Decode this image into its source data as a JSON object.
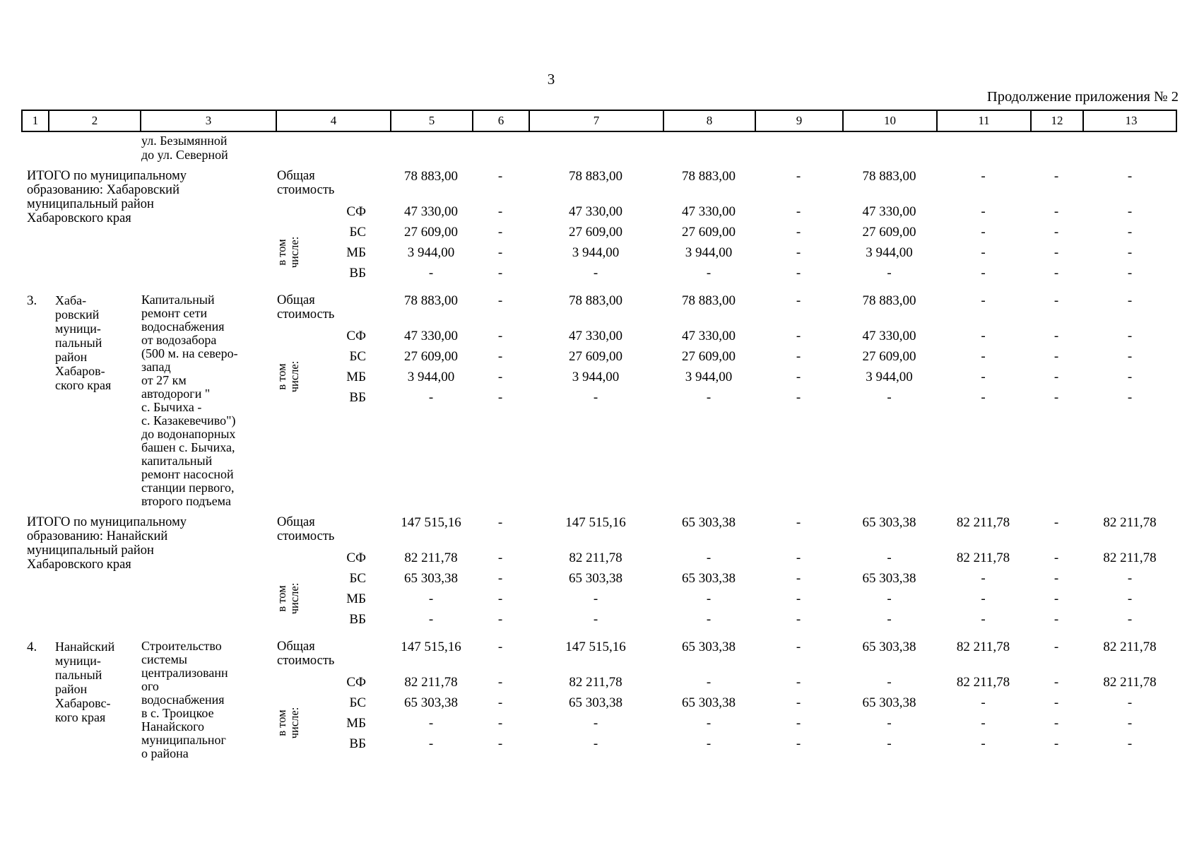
{
  "page": {
    "number": "3",
    "caption": "Продолжение приложения № 2"
  },
  "table": {
    "column_headers": [
      "1",
      "2",
      "3",
      "4",
      "5",
      "6",
      "7",
      "8",
      "9",
      "10",
      "11",
      "12",
      "13"
    ],
    "carryover_text": "ул. Безымянной\nдо ул. Северной",
    "include_label": "в том\nчисле:",
    "groups": [
      {
        "num": "",
        "district": "",
        "object": "",
        "span_title": "ИТОГО по муниципальному\nобразованию: Хабаровский\nмуниципальный район\nХабаровского края",
        "rows": [
          {
            "label": "Общая\nстоимость",
            "values": [
              "78 883,00",
              "-",
              "78 883,00",
              "78 883,00",
              "-",
              "78 883,00",
              "-",
              "-",
              "-"
            ]
          },
          {
            "label": "СФ",
            "values": [
              "47 330,00",
              "-",
              "47 330,00",
              "47 330,00",
              "-",
              "47 330,00",
              "-",
              "-",
              "-"
            ]
          },
          {
            "label": "БС",
            "values": [
              "27 609,00",
              "-",
              "27 609,00",
              "27 609,00",
              "-",
              "27 609,00",
              "-",
              "-",
              "-"
            ]
          },
          {
            "label": "МБ",
            "values": [
              "3 944,00",
              "-",
              "3 944,00",
              "3 944,00",
              "-",
              "3 944,00",
              "-",
              "-",
              "-"
            ]
          },
          {
            "label": "ВБ",
            "values": [
              "-",
              "-",
              "-",
              "-",
              "-",
              "-",
              "-",
              "-",
              "-"
            ]
          }
        ]
      },
      {
        "num": "3.",
        "district": "Хаба-\nровский\nмуници-\nпальный\nрайон\nХабаров-\nского края",
        "object": "Капитальный\nремонт сети\nводоснабжения\nот водозабора\n(500 м. на северо-\nзапад\nот 27 км\nавтодороги \"\nс. Бычиха -\nс. Казакевечиво\")\nдо водонапорных\nбашен с. Бычиха,\nкапитальный\nремонт насосной\nстанции первого,\nвторого подъема",
        "span_title": "",
        "rows": [
          {
            "label": "Общая\nстоимость",
            "values": [
              "78 883,00",
              "-",
              "78 883,00",
              "78 883,00",
              "-",
              "78 883,00",
              "-",
              "-",
              "-"
            ]
          },
          {
            "label": "СФ",
            "values": [
              "47 330,00",
              "-",
              "47 330,00",
              "47 330,00",
              "-",
              "47 330,00",
              "-",
              "-",
              "-"
            ]
          },
          {
            "label": "БС",
            "values": [
              "27 609,00",
              "-",
              "27 609,00",
              "27 609,00",
              "-",
              "27 609,00",
              "-",
              "-",
              "-"
            ]
          },
          {
            "label": "МБ",
            "values": [
              "3 944,00",
              "-",
              "3 944,00",
              "3 944,00",
              "-",
              "3 944,00",
              "-",
              "-",
              "-"
            ]
          },
          {
            "label": "ВБ",
            "values": [
              "-",
              "-",
              "-",
              "-",
              "-",
              "-",
              "-",
              "-",
              "-"
            ]
          }
        ]
      },
      {
        "num": "",
        "district": "",
        "object": "",
        "span_title": "ИТОГО по муниципальному\nобразованию: Нанайский\nмуниципальный район\nХабаровского края",
        "rows": [
          {
            "label": "Общая\nстоимость",
            "values": [
              "147 515,16",
              "-",
              "147 515,16",
              "65 303,38",
              "-",
              "65 303,38",
              "82 211,78",
              "-",
              "82 211,78"
            ]
          },
          {
            "label": "СФ",
            "values": [
              "82 211,78",
              "-",
              "82 211,78",
              "-",
              "-",
              "-",
              "82 211,78",
              "-",
              "82 211,78"
            ]
          },
          {
            "label": "БС",
            "values": [
              "65 303,38",
              "-",
              "65 303,38",
              "65 303,38",
              "-",
              "65 303,38",
              "-",
              "-",
              "-"
            ]
          },
          {
            "label": "МБ",
            "values": [
              "-",
              "-",
              "-",
              "-",
              "-",
              "-",
              "-",
              "-",
              "-"
            ]
          },
          {
            "label": "ВБ",
            "values": [
              "-",
              "-",
              "-",
              "-",
              "-",
              "-",
              "-",
              "-",
              "-"
            ]
          }
        ]
      },
      {
        "num": "4.",
        "district": "Нанайский\nмуници-\nпальный\nрайон\nХабаровс-\nкого края",
        "object": "Строительство\nсистемы\nцентрализованн\nого\nводоснабжения\nв с. Троицкое\nНанайского\nмуниципальног\nо района",
        "span_title": "",
        "rows": [
          {
            "label": "Общая\nстоимость",
            "values": [
              "147 515,16",
              "-",
              "147 515,16",
              "65 303,38",
              "-",
              "65 303,38",
              "82 211,78",
              "-",
              "82 211,78"
            ]
          },
          {
            "label": "СФ",
            "values": [
              "82 211,78",
              "-",
              "82 211,78",
              "-",
              "-",
              "-",
              "82 211,78",
              "-",
              "82 211,78"
            ]
          },
          {
            "label": "БС",
            "values": [
              "65 303,38",
              "-",
              "65 303,38",
              "65 303,38",
              "-",
              "65 303,38",
              "-",
              "-",
              "-"
            ]
          },
          {
            "label": "МБ",
            "values": [
              "-",
              "-",
              "-",
              "-",
              "-",
              "-",
              "-",
              "-",
              "-"
            ]
          },
          {
            "label": "ВБ",
            "values": [
              "-",
              "-",
              "-",
              "-",
              "-",
              "-",
              "-",
              "-",
              "-"
            ]
          }
        ]
      }
    ]
  }
}
